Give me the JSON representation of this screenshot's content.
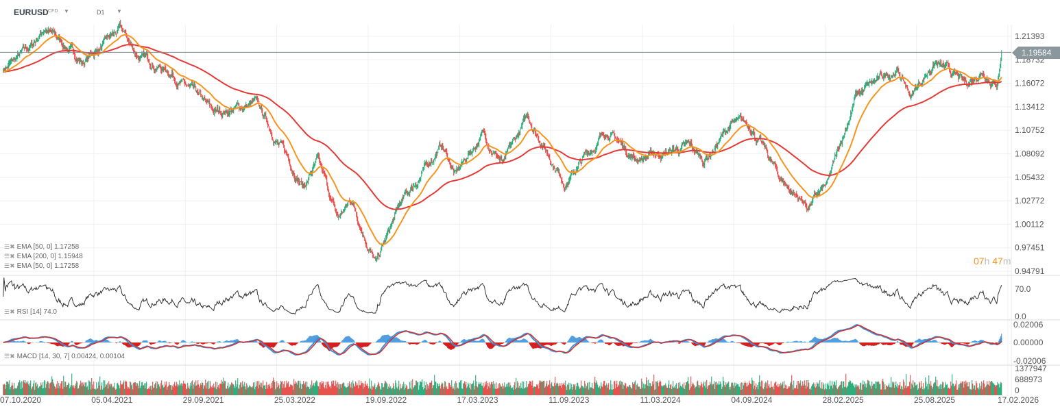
{
  "header": {
    "symbol": "EURUSD",
    "instrument_type": "CFD",
    "timeframe": "D1"
  },
  "current_price": "1.19584",
  "countdown": {
    "hours": "07",
    "hours_unit": "h",
    "minutes": "47",
    "minutes_unit": "m"
  },
  "colors": {
    "up": "#11a36a",
    "down": "#e53935",
    "ema50": "#f7941d",
    "ema200": "#e53935",
    "rsi": "#333333",
    "macd": "#3a8fd8",
    "signal": "#d32f2f",
    "price_line": "#7a8a90"
  },
  "indicators": {
    "ema1": "EMA  [50,  0]  1.17258",
    "ema2": "EMA  [200,  0]  1.15948",
    "ema3": "EMA  [50,  0]  1.17258",
    "rsi": "RSI  [14]  74.0",
    "macd": "MACD  [14,  30,  7]  0.00424,  0.00104"
  },
  "chart_data": [
    {
      "type": "candlestick",
      "title": "EURUSD D1",
      "y_ticks": [
        "1.21393",
        "1.18732",
        "1.16072",
        "1.13412",
        "1.10752",
        "1.08092",
        "1.05432",
        "1.02772",
        "1.00112",
        "0.97451",
        "0.94791"
      ],
      "ylim": [
        0.94791,
        1.21393
      ],
      "x_ticks": [
        "07.10.2020",
        "05.04.2021",
        "29.09.2021",
        "25.03.2022",
        "19.09.2022",
        "17.03.2023",
        "11.09.2023",
        "11.03.2024",
        "04.09.2024",
        "28.02.2025",
        "25.08.2025",
        "17.02.2026"
      ],
      "xlim": [
        "2020-10-07",
        "2026-02-17"
      ],
      "grid": true,
      "price_path": [
        {
          "date": "2020-09-03",
          "close": 1.177
        },
        {
          "date": "2020-10-27",
          "close": 1.2
        },
        {
          "date": "2020-11-23",
          "close": 1.224
        },
        {
          "date": "2021-02-06",
          "close": 1.185
        },
        {
          "date": "2021-04-21",
          "close": 1.22
        },
        {
          "date": "2021-05-25",
          "close": 1.192
        },
        {
          "date": "2021-08-01",
          "close": 1.173
        },
        {
          "date": "2021-10-21",
          "close": 1.126
        },
        {
          "date": "2022-01-11",
          "close": 1.138
        },
        {
          "date": "2022-02-20",
          "close": 1.099
        },
        {
          "date": "2022-04-16",
          "close": 1.045
        },
        {
          "date": "2022-05-13",
          "close": 1.072
        },
        {
          "date": "2022-06-22",
          "close": 1.006
        },
        {
          "date": "2022-07-19",
          "close": 1.029
        },
        {
          "date": "2022-09-05",
          "close": 0.956
        },
        {
          "date": "2022-10-22",
          "close": 1.022
        },
        {
          "date": "2023-01-12",
          "close": 1.092
        },
        {
          "date": "2023-02-08",
          "close": 1.057
        },
        {
          "date": "2023-04-03",
          "close": 1.104
        },
        {
          "date": "2023-05-14",
          "close": 1.069
        },
        {
          "date": "2023-06-30",
          "close": 1.123
        },
        {
          "date": "2023-09-12",
          "close": 1.049
        },
        {
          "date": "2023-12-03",
          "close": 1.108
        },
        {
          "date": "2024-01-26",
          "close": 1.076
        },
        {
          "date": "2024-05-13",
          "close": 1.088
        },
        {
          "date": "2024-06-09",
          "close": 1.072
        },
        {
          "date": "2024-08-03",
          "close": 1.115
        },
        {
          "date": "2024-09-12",
          "close": 1.111
        },
        {
          "date": "2024-11-06",
          "close": 1.053
        },
        {
          "date": "2024-12-30",
          "close": 1.022
        },
        {
          "date": "2025-02-08",
          "close": 1.045
        },
        {
          "date": "2025-04-04",
          "close": 1.146
        },
        {
          "date": "2025-06-24",
          "close": 1.177
        },
        {
          "date": "2025-07-21",
          "close": 1.146
        },
        {
          "date": "2025-09-06",
          "close": 1.185
        },
        {
          "date": "2025-11-06",
          "close": 1.158
        },
        {
          "date": "2025-12-10",
          "close": 1.177
        },
        {
          "date": "2026-01-06",
          "close": 1.161
        },
        {
          "date": "2026-01-16",
          "close": 1.19584
        }
      ],
      "series": [
        {
          "name": "EMA [50, 0]",
          "last": 1.17258
        },
        {
          "name": "EMA [200, 0]",
          "last": 1.15948
        }
      ]
    },
    {
      "type": "line",
      "title": "RSI [14]",
      "y_ticks": [
        "70.0",
        "0.0"
      ],
      "last": 74.0
    },
    {
      "type": "line+bar",
      "title": "MACD [14, 30, 7]",
      "y_ticks": [
        "0.02006",
        "0.00000",
        "-0.02006"
      ],
      "macd": 0.00424,
      "signal": 0.00104
    },
    {
      "type": "bar",
      "title": "Volume",
      "y_ticks": [
        "1377947",
        "688973",
        "0"
      ]
    }
  ]
}
